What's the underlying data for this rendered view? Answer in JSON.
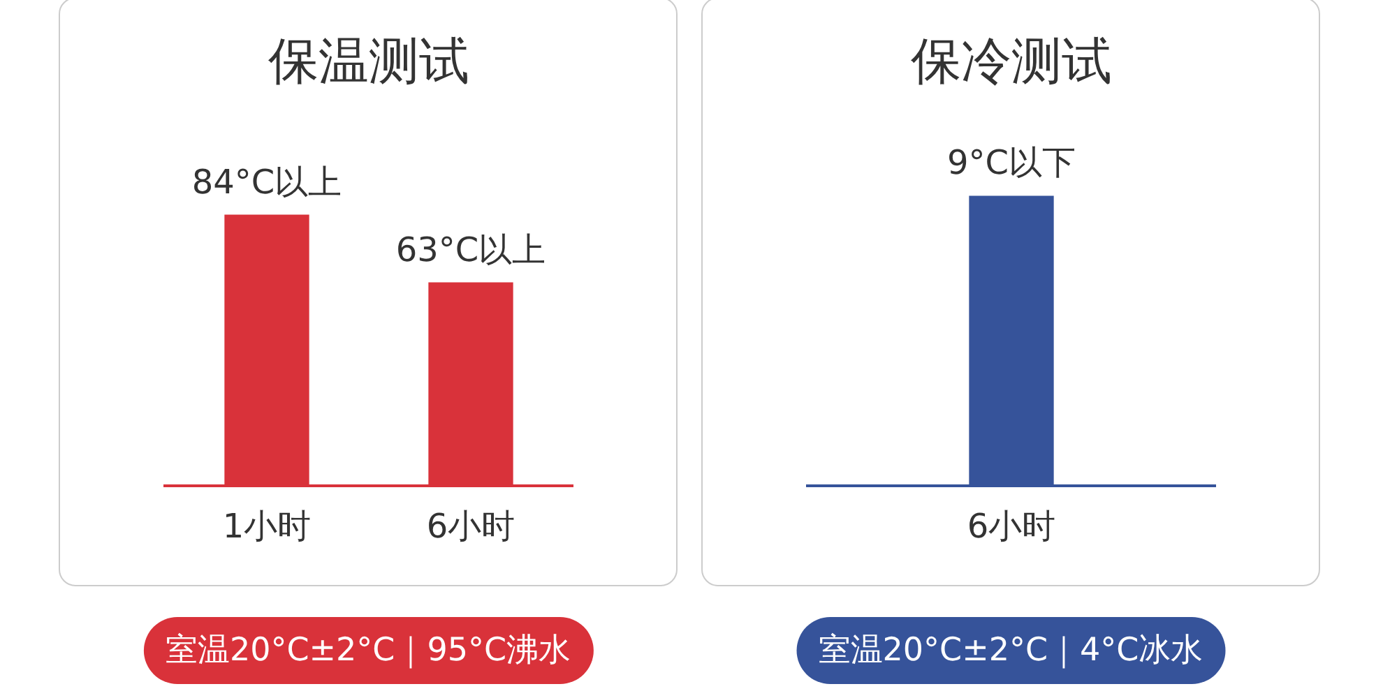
{
  "chart_data": [
    {
      "type": "bar",
      "title": "保温测试",
      "categories": [
        "1小时",
        "6小时"
      ],
      "values": [
        84,
        63
      ],
      "value_labels": [
        "84°C以上",
        "63°C以上"
      ],
      "color": "#d9323a",
      "annotations": [
        "室温20°C±2°C｜95°C沸水"
      ]
    },
    {
      "type": "bar",
      "title": "保冷测试",
      "categories": [
        "6小时"
      ],
      "values": [
        9
      ],
      "value_labels": [
        "9°C以下"
      ],
      "color": "#36539a",
      "annotations": [
        "室温20°C±2°C｜4°C冰水"
      ]
    }
  ]
}
